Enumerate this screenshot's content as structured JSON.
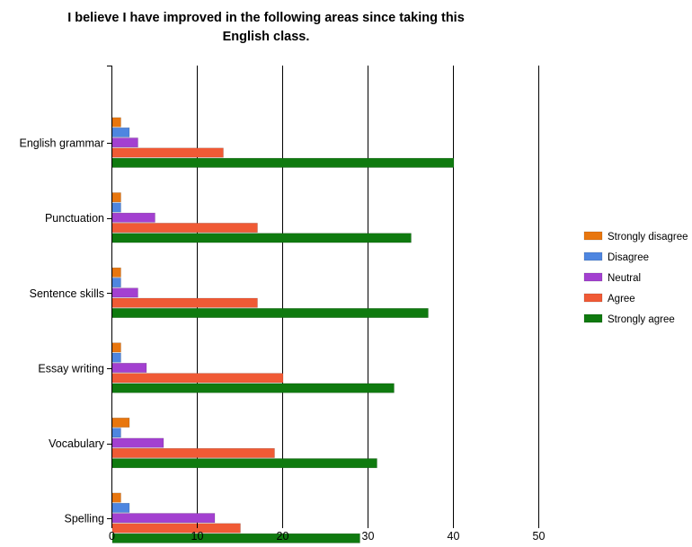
{
  "chart_data": {
    "type": "bar",
    "orientation": "horizontal",
    "title": "I believe I have improved in the following areas since taking this English class.",
    "title_lines": [
      "I believe I have improved in the following areas since taking this",
      "English class."
    ],
    "xlabel": "",
    "ylabel": "",
    "xlim": [
      0,
      50
    ],
    "x_ticks": [
      "0",
      "10",
      "20",
      "30",
      "40",
      "50"
    ],
    "grid": "vertical",
    "legend_position": "right",
    "categories": [
      "English grammar",
      "Punctuation",
      "Sentence skills",
      "Essay writing",
      "Vocabulary",
      "Spelling"
    ],
    "series": [
      {
        "name": "Strongly disagree",
        "color": "#E8760E",
        "values": [
          1,
          1,
          1,
          1,
          2,
          1
        ]
      },
      {
        "name": "Disagree",
        "color": "#4E86E0",
        "values": [
          2,
          1,
          1,
          1,
          1,
          2
        ]
      },
      {
        "name": "Neutral",
        "color": "#A340D0",
        "values": [
          3,
          5,
          3,
          4,
          6,
          12
        ]
      },
      {
        "name": "Agree",
        "color": "#F05A35",
        "values": [
          13,
          17,
          17,
          20,
          19,
          15
        ]
      },
      {
        "name": "Strongly agree",
        "color": "#0F7A0F",
        "values": [
          40,
          35,
          37,
          33,
          31,
          29
        ]
      }
    ]
  }
}
